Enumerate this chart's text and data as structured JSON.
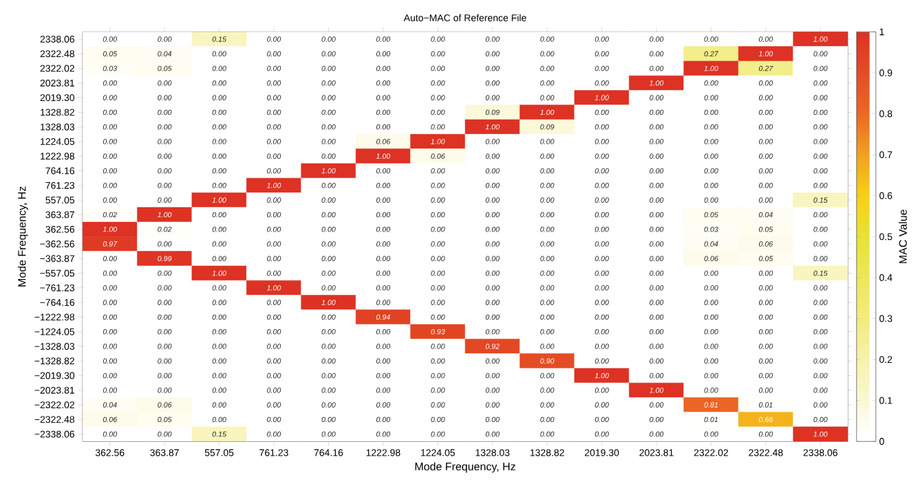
{
  "chart_data": {
    "type": "heatmap",
    "title": "Auto−MAC of Reference File",
    "xlabel": "Mode Frequency, Hz",
    "ylabel": "Mode Frequency, Hz",
    "clabel": "MAC Value",
    "categories": [
      "362.56",
      "363.87",
      "557.05",
      "761.23",
      "764.16",
      "1222.98",
      "1224.05",
      "1328.03",
      "1328.82",
      "2019.30",
      "2023.81",
      "2322.02",
      "2322.48",
      "2338.06"
    ],
    "y_categories": [
      "2338.06",
      "2322.48",
      "2322.02",
      "2023.81",
      "2019.30",
      "1328.82",
      "1328.03",
      "1224.05",
      "1222.98",
      "764.16",
      "761.23",
      "557.05",
      "363.87",
      "362.56",
      "−362.56",
      "−363.87",
      "−557.05",
      "−761.23",
      "−764.16",
      "−1222.98",
      "−1224.05",
      "−1328.03",
      "−1328.82",
      "−2019.30",
      "−2023.81",
      "−2322.02",
      "−2322.48",
      "−2338.06"
    ],
    "cells": [
      [
        0,
        0,
        0.15,
        0,
        0,
        0,
        0,
        0,
        0,
        0,
        0,
        0,
        0,
        1
      ],
      [
        0.05,
        0.04,
        0,
        0,
        0,
        0,
        0,
        0,
        0,
        0,
        0,
        0.27,
        1,
        0
      ],
      [
        0.03,
        0.05,
        0,
        0,
        0,
        0,
        0,
        0,
        0,
        0,
        0,
        1,
        0.27,
        0
      ],
      [
        0,
        0,
        0,
        0,
        0,
        0,
        0,
        0,
        0,
        0,
        1,
        0,
        0,
        0
      ],
      [
        0,
        0,
        0,
        0,
        0,
        0,
        0,
        0,
        0,
        1,
        0,
        0,
        0,
        0
      ],
      [
        0,
        0,
        0,
        0,
        0,
        0,
        0,
        0.09,
        1,
        0,
        0,
        0,
        0,
        0
      ],
      [
        0,
        0,
        0,
        0,
        0,
        0,
        0,
        1,
        0.09,
        0,
        0,
        0,
        0,
        0
      ],
      [
        0,
        0,
        0,
        0,
        0,
        0.06,
        1,
        0,
        0,
        0,
        0,
        0,
        0,
        0
      ],
      [
        0,
        0,
        0,
        0,
        0,
        1,
        0.06,
        0,
        0,
        0,
        0,
        0,
        0,
        0
      ],
      [
        0,
        0,
        0,
        0,
        1,
        0,
        0,
        0,
        0,
        0,
        0,
        0,
        0,
        0
      ],
      [
        0,
        0,
        0,
        1,
        0,
        0,
        0,
        0,
        0,
        0,
        0,
        0,
        0,
        0
      ],
      [
        0,
        0,
        1,
        0,
        0,
        0,
        0,
        0,
        0,
        0,
        0,
        0,
        0,
        0.15
      ],
      [
        0.02,
        1,
        0,
        0,
        0,
        0,
        0,
        0,
        0,
        0,
        0,
        0.05,
        0.04,
        0
      ],
      [
        1,
        0.02,
        0,
        0,
        0,
        0,
        0,
        0,
        0,
        0,
        0,
        0.03,
        0.05,
        0
      ],
      [
        0.97,
        0,
        0,
        0,
        0,
        0,
        0,
        0,
        0,
        0,
        0,
        0.04,
        0.06,
        0
      ],
      [
        0,
        0.99,
        0,
        0,
        0,
        0,
        0,
        0,
        0,
        0,
        0,
        0.06,
        0.05,
        0
      ],
      [
        0,
        0,
        1,
        0,
        0,
        0,
        0,
        0,
        0,
        0,
        0,
        0,
        0,
        0.15
      ],
      [
        0,
        0,
        0,
        1,
        0,
        0,
        0,
        0,
        0,
        0,
        0,
        0,
        0,
        0
      ],
      [
        0,
        0,
        0,
        0,
        1,
        0,
        0,
        0,
        0,
        0,
        0,
        0,
        0,
        0
      ],
      [
        0,
        0,
        0,
        0,
        0,
        0.94,
        0,
        0,
        0,
        0,
        0,
        0,
        0,
        0
      ],
      [
        0,
        0,
        0,
        0,
        0,
        0,
        0.93,
        0,
        0,
        0,
        0,
        0,
        0,
        0
      ],
      [
        0,
        0,
        0,
        0,
        0,
        0,
        0,
        0.92,
        0,
        0,
        0,
        0,
        0,
        0
      ],
      [
        0,
        0,
        0,
        0,
        0,
        0,
        0,
        0,
        0.9,
        0,
        0,
        0,
        0,
        0
      ],
      [
        0,
        0,
        0,
        0,
        0,
        0,
        0,
        0,
        0,
        1,
        0,
        0,
        0,
        0
      ],
      [
        0,
        0,
        0,
        0,
        0,
        0,
        0,
        0,
        0,
        0,
        1,
        0,
        0,
        0
      ],
      [
        0.04,
        0.06,
        0,
        0,
        0,
        0,
        0,
        0,
        0,
        0,
        0,
        0.81,
        0.01,
        0
      ],
      [
        0.06,
        0.05,
        0,
        0,
        0,
        0,
        0,
        0,
        0,
        0,
        0,
        0.01,
        0.66,
        0
      ],
      [
        0,
        0,
        0.15,
        0,
        0,
        0,
        0,
        0,
        0,
        0,
        0,
        0,
        0,
        1
      ]
    ],
    "cell_labels": [
      [
        "0.00",
        "0.00",
        "0.15",
        "0.00",
        "0.00",
        "0.00",
        "0.00",
        "0.00",
        "0.00",
        "0.00",
        "0.00",
        "0.00",
        "0.00",
        "1.00"
      ],
      [
        "0.05",
        "0.04",
        "0.00",
        "0.00",
        "0.00",
        "0.00",
        "0.00",
        "0.00",
        "0.00",
        "0.00",
        "0.00",
        "0.27",
        "1.00",
        "0.00"
      ],
      [
        "0.03",
        "0.05",
        "0.00",
        "0.00",
        "0.00",
        "0.00",
        "0.00",
        "0.00",
        "0.00",
        "0.00",
        "0.00",
        "1.00",
        "0.27",
        "0.00"
      ],
      [
        "0.00",
        "0.00",
        "0.00",
        "0.00",
        "0.00",
        "0.00",
        "0.00",
        "0.00",
        "0.00",
        "0.00",
        "1.00",
        "0.00",
        "0.00",
        "0.00"
      ],
      [
        "0.00",
        "0.00",
        "0.00",
        "0.00",
        "0.00",
        "0.00",
        "0.00",
        "0.00",
        "0.00",
        "1.00",
        "0.00",
        "0.00",
        "0.00",
        "0.00"
      ],
      [
        "0.00",
        "0.00",
        "0.00",
        "0.00",
        "0.00",
        "0.00",
        "0.00",
        "0.09",
        "1.00",
        "0.00",
        "0.00",
        "0.00",
        "0.00",
        "0.00"
      ],
      [
        "0.00",
        "0.00",
        "0.00",
        "0.00",
        "0.00",
        "0.00",
        "0.00",
        "1.00",
        "0.09",
        "0.00",
        "0.00",
        "0.00",
        "0.00",
        "0.00"
      ],
      [
        "0.00",
        "0.00",
        "0.00",
        "0.00",
        "0.00",
        "0.06",
        "1.00",
        "0.00",
        "0.00",
        "0.00",
        "0.00",
        "0.00",
        "0.00",
        "0.00"
      ],
      [
        "0.00",
        "0.00",
        "0.00",
        "0.00",
        "0.00",
        "1.00",
        "0.06",
        "0.00",
        "0.00",
        "0.00",
        "0.00",
        "0.00",
        "0.00",
        "0.00"
      ],
      [
        "0.00",
        "0.00",
        "0.00",
        "0.00",
        "1.00",
        "0.00",
        "0.00",
        "0.00",
        "0.00",
        "0.00",
        "0.00",
        "0.00",
        "0.00",
        "0.00"
      ],
      [
        "0.00",
        "0.00",
        "0.00",
        "1.00",
        "0.00",
        "0.00",
        "0.00",
        "0.00",
        "0.00",
        "0.00",
        "0.00",
        "0.00",
        "0.00",
        "0.00"
      ],
      [
        "0.00",
        "0.00",
        "1.00",
        "0.00",
        "0.00",
        "0.00",
        "0.00",
        "0.00",
        "0.00",
        "0.00",
        "0.00",
        "0.00",
        "0.00",
        "0.15"
      ],
      [
        "0.02",
        "1.00",
        "0.00",
        "0.00",
        "0.00",
        "0.00",
        "0.00",
        "0.00",
        "0.00",
        "0.00",
        "0.00",
        "0.05",
        "0.04",
        "0.00"
      ],
      [
        "1.00",
        "0.02",
        "0.00",
        "0.00",
        "0.00",
        "0.00",
        "0.00",
        "0.00",
        "0.00",
        "0.00",
        "0.00",
        "0.03",
        "0.05",
        "0.00"
      ],
      [
        "0.97",
        "0.00",
        "0.00",
        "0.00",
        "0.00",
        "0.00",
        "0.00",
        "0.00",
        "0.00",
        "0.00",
        "0.00",
        "0.04",
        "0.06",
        "0.00"
      ],
      [
        "0.00",
        "0.99",
        "0.00",
        "0.00",
        "0.00",
        "0.00",
        "0.00",
        "0.00",
        "0.00",
        "0.00",
        "0.00",
        "0.06",
        "0.05",
        "0.00"
      ],
      [
        "0.00",
        "0.00",
        "1.00",
        "0.00",
        "0.00",
        "0.00",
        "0.00",
        "0.00",
        "0.00",
        "0.00",
        "0.00",
        "0.00",
        "0.00",
        "0.15"
      ],
      [
        "0.00",
        "0.00",
        "0.00",
        "1.00",
        "0.00",
        "0.00",
        "0.00",
        "0.00",
        "0.00",
        "0.00",
        "0.00",
        "0.00",
        "0.00",
        "0.00"
      ],
      [
        "0.00",
        "0.00",
        "0.00",
        "0.00",
        "1.00",
        "0.00",
        "0.00",
        "0.00",
        "0.00",
        "0.00",
        "0.00",
        "0.00",
        "0.00",
        "0.00"
      ],
      [
        "0.00",
        "0.00",
        "0.00",
        "0.00",
        "0.00",
        "0.94",
        "0.00",
        "0.00",
        "0.00",
        "0.00",
        "0.00",
        "0.00",
        "0.00",
        "0.00"
      ],
      [
        "0.00",
        "0.00",
        "0.00",
        "0.00",
        "0.00",
        "0.00",
        "0.93",
        "0.00",
        "0.00",
        "0.00",
        "0.00",
        "0.00",
        "0.00",
        "0.00"
      ],
      [
        "0.00",
        "0.00",
        "0.00",
        "0.00",
        "0.00",
        "0.00",
        "0.00",
        "0.92",
        "0.00",
        "0.00",
        "0.00",
        "0.00",
        "0.00",
        "0.00"
      ],
      [
        "0.00",
        "0.00",
        "0.00",
        "0.00",
        "0.00",
        "0.00",
        "0.00",
        "0.00",
        "0.90",
        "0.00",
        "0.00",
        "0.00",
        "0.00",
        "0.00"
      ],
      [
        "0.00",
        "0.00",
        "0.00",
        "0.00",
        "0.00",
        "0.00",
        "0.00",
        "0.00",
        "0.00",
        "1.00",
        "0.00",
        "0.00",
        "0.00",
        "0.00"
      ],
      [
        "0.00",
        "0.00",
        "0.00",
        "0.00",
        "0.00",
        "0.00",
        "0.00",
        "0.00",
        "0.00",
        "0.00",
        "1.00",
        "0.00",
        "0.00",
        "0.00"
      ],
      [
        "0.04",
        "0.06",
        "0.00",
        "0.00",
        "0.00",
        "0.00",
        "0.00",
        "0.00",
        "0.00",
        "0.00",
        "0.00",
        "0.81",
        "0.01",
        "0.00"
      ],
      [
        "0.06",
        "0.05",
        "0.00",
        "0.00",
        "0.00",
        "0.00",
        "0.00",
        "0.00",
        "0.00",
        "0.00",
        "0.00",
        "0.01",
        "0.66",
        "0.00"
      ],
      [
        "0.00",
        "0.00",
        "0.15",
        "0.00",
        "0.00",
        "0.00",
        "0.00",
        "0.00",
        "0.00",
        "0.00",
        "0.00",
        "0.00",
        "0.00",
        "1.00"
      ]
    ],
    "clim": [
      0,
      1
    ],
    "cticks": [
      0,
      0.1,
      0.2,
      0.3,
      0.4,
      0.5,
      0.6,
      0.7,
      0.8,
      0.9,
      1
    ]
  }
}
